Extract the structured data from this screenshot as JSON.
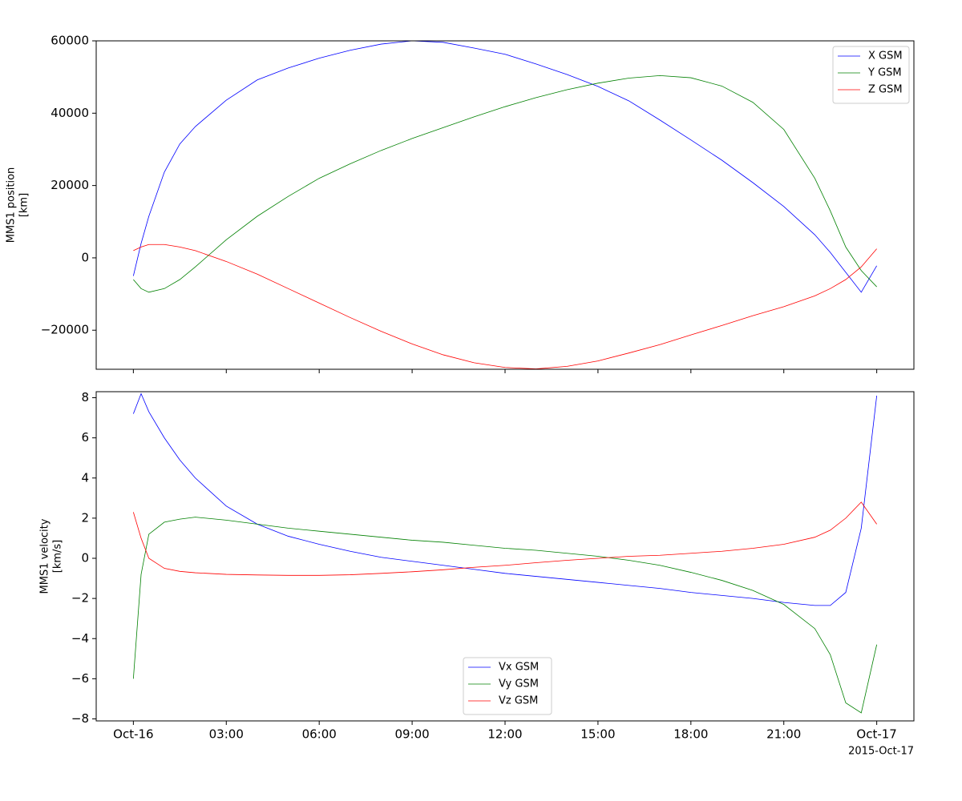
{
  "chart_data": [
    {
      "type": "line",
      "ylabel": [
        "MMS1 position",
        "[km]"
      ],
      "x": [
        0,
        0.25,
        0.5,
        1,
        1.5,
        2,
        3,
        4,
        5,
        6,
        7,
        8,
        9,
        10,
        11,
        12,
        13,
        14,
        15,
        16,
        17,
        18,
        19,
        20,
        21,
        22,
        22.5,
        23,
        23.5,
        24
      ],
      "series": [
        {
          "name": "X GSM",
          "color": "#0000ff",
          "values": [
            -5000,
            4000,
            11500,
            23700,
            31500,
            36300,
            43600,
            49200,
            52500,
            55200,
            57400,
            59100,
            60000,
            59600,
            58000,
            56300,
            53600,
            50700,
            47400,
            43400,
            38100,
            32600,
            27000,
            20800,
            14200,
            6400,
            1500,
            -4000,
            -9500,
            -2200
          ]
        },
        {
          "name": "Y GSM",
          "color": "#008000",
          "values": [
            -6000,
            -8500,
            -9500,
            -8500,
            -6000,
            -2500,
            5000,
            11500,
            17000,
            22000,
            26000,
            29700,
            33000,
            36000,
            39000,
            41800,
            44300,
            46500,
            48300,
            49700,
            50400,
            49800,
            47500,
            43000,
            35500,
            22000,
            13000,
            3000,
            -3500,
            -8000
          ]
        },
        {
          "name": "Z GSM",
          "color": "#ff0000",
          "values": [
            2000,
            3000,
            3700,
            3700,
            3000,
            2000,
            -1000,
            -4500,
            -8500,
            -12500,
            -16500,
            -20300,
            -23800,
            -26800,
            -29000,
            -30300,
            -30700,
            -30000,
            -28500,
            -26300,
            -24000,
            -21300,
            -18700,
            -16000,
            -13500,
            -10500,
            -8500,
            -6000,
            -2500,
            2500
          ]
        }
      ],
      "xlim": [
        -1.2,
        25.2
      ],
      "xticks": [
        0,
        3,
        6,
        9,
        12,
        15,
        18,
        21,
        24
      ],
      "ylim": [
        -30800,
        60000
      ],
      "yticks": [
        {
          "value": -20000,
          "label": "−20000"
        },
        0,
        20000,
        40000,
        60000
      ],
      "legend": "upper right"
    },
    {
      "type": "line",
      "ylabel": [
        "MMS1 velocity",
        "[km/s]"
      ],
      "x": [
        0,
        0.25,
        0.5,
        1,
        1.5,
        2,
        3,
        4,
        5,
        6,
        7,
        8,
        9,
        10,
        11,
        12,
        13,
        14,
        15,
        16,
        17,
        18,
        19,
        20,
        21,
        22,
        22.5,
        23,
        23.5,
        24
      ],
      "series": [
        {
          "name": "Vx GSM",
          "color": "#0000ff",
          "values": [
            7.2,
            8.2,
            7.3,
            6.0,
            4.9,
            4.0,
            2.6,
            1.7,
            1.1,
            0.7,
            0.35,
            0.05,
            -0.15,
            -0.35,
            -0.55,
            -0.75,
            -0.9,
            -1.05,
            -1.2,
            -1.35,
            -1.5,
            -1.7,
            -1.85,
            -2.0,
            -2.2,
            -2.35,
            -2.35,
            -1.7,
            1.5,
            8.1
          ]
        },
        {
          "name": "Vy GSM",
          "color": "#008000",
          "values": [
            -6.0,
            -0.8,
            1.2,
            1.8,
            1.95,
            2.05,
            1.9,
            1.7,
            1.5,
            1.35,
            1.2,
            1.05,
            0.9,
            0.8,
            0.65,
            0.5,
            0.4,
            0.25,
            0.1,
            -0.1,
            -0.35,
            -0.7,
            -1.1,
            -1.6,
            -2.3,
            -3.5,
            -4.8,
            -7.2,
            -7.7,
            -4.3
          ]
        },
        {
          "name": "Vz GSM",
          "color": "#ff0000",
          "values": [
            2.3,
            1.0,
            0.0,
            -0.5,
            -0.65,
            -0.72,
            -0.8,
            -0.83,
            -0.85,
            -0.85,
            -0.82,
            -0.75,
            -0.67,
            -0.57,
            -0.45,
            -0.35,
            -0.22,
            -0.1,
            0.0,
            0.1,
            0.15,
            0.25,
            0.35,
            0.5,
            0.7,
            1.05,
            1.4,
            2.0,
            2.8,
            1.7
          ]
        }
      ],
      "xlim": [
        -1.2,
        25.2
      ],
      "xticks": [
        {
          "value": 0,
          "label": "Oct-16"
        },
        {
          "value": 3,
          "label": "03:00"
        },
        {
          "value": 6,
          "label": "06:00"
        },
        {
          "value": 9,
          "label": "09:00"
        },
        {
          "value": 12,
          "label": "12:00"
        },
        {
          "value": 15,
          "label": "15:00"
        },
        {
          "value": 18,
          "label": "18:00"
        },
        {
          "value": 21,
          "label": "21:00"
        },
        {
          "value": 24,
          "label": "Oct-17"
        }
      ],
      "x_offset_label": "2015-Oct-17",
      "ylim": [
        -8.1,
        8.3
      ],
      "yticks": [
        {
          "value": -8,
          "label": "−8"
        },
        {
          "value": -6,
          "label": "−6"
        },
        {
          "value": -4,
          "label": "−4"
        },
        {
          "value": -2,
          "label": "−2"
        },
        0,
        2,
        4,
        6,
        8
      ],
      "legend": "lower center"
    }
  ]
}
